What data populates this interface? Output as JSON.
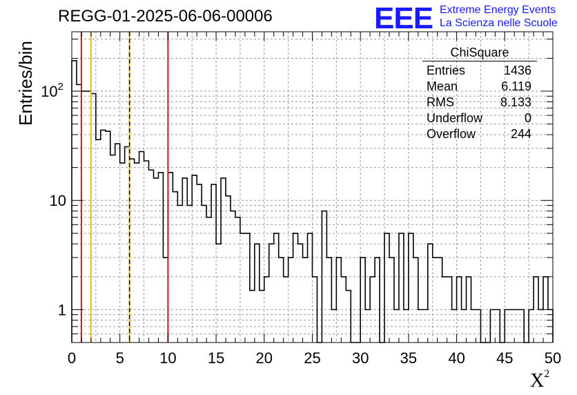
{
  "chart_data": {
    "type": "bar",
    "title": "REGG-01-2025-06-06-00006",
    "xlabel": "X",
    "xlabel_superscript": "2",
    "ylabel": "Entries/bin",
    "xlim": [
      0,
      50
    ],
    "ylim": [
      0.5,
      350
    ],
    "yscale": "log",
    "grid": true,
    "bin_width": 0.5,
    "x_ticks": [
      "0",
      "5",
      "10",
      "15",
      "20",
      "25",
      "30",
      "35",
      "40",
      "45",
      "50"
    ],
    "y_ticks": [
      "1",
      "10",
      "10^2"
    ],
    "values": [
      190,
      115,
      100,
      100,
      95,
      36,
      44,
      43,
      26,
      33,
      22,
      31,
      24,
      22,
      28,
      23,
      19,
      16,
      18,
      3,
      18,
      12,
      9,
      16,
      9,
      17,
      14,
      9,
      7,
      14,
      4,
      16,
      11,
      8,
      7,
      5,
      5,
      1.5,
      4,
      1.5,
      2,
      4,
      5,
      3,
      2,
      3,
      5,
      4,
      3,
      5,
      2,
      0.5,
      8,
      3,
      1,
      3,
      2,
      1.5,
      0,
      0,
      3,
      1,
      2,
      3,
      0,
      5,
      3,
      1,
      5,
      1,
      5,
      3,
      1,
      1,
      4,
      3,
      3,
      2,
      2,
      1,
      2,
      1,
      2,
      1,
      1,
      0.5,
      0,
      1,
      1,
      0,
      1,
      1,
      1,
      1,
      0,
      1,
      2,
      1,
      2,
      1
    ],
    "vertical_lines": [
      {
        "x": 1,
        "color": "#dd1111",
        "style": "solid"
      },
      {
        "x": 2,
        "color": "#f2bb00",
        "style": "solid"
      },
      {
        "x": 6,
        "color": "#f2bb00",
        "style": "solid"
      },
      {
        "x": 6,
        "color": "#000000",
        "style": "dashed"
      },
      {
        "x": 10,
        "color": "#dd1111",
        "style": "solid"
      }
    ],
    "stats_box": {
      "title": "ChiSquare",
      "rows": [
        {
          "label": "Entries",
          "value": "1436"
        },
        {
          "label": "Mean",
          "value": "6.119"
        },
        {
          "label": "RMS",
          "value": "8.133"
        },
        {
          "label": "Underflow",
          "value": "0"
        },
        {
          "label": "Overflow",
          "value": "244"
        }
      ]
    }
  },
  "logo": {
    "mark": "EEE",
    "line1": "Extreme Energy Events",
    "line2": "La Scienza nelle Scuole",
    "color": "#1a1aff"
  }
}
